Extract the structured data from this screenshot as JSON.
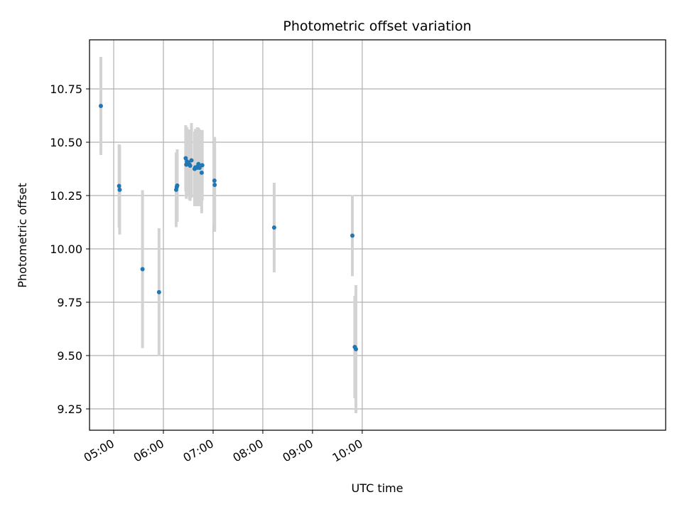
{
  "chart_data": {
    "type": "scatter",
    "title": "Photometric offset variation",
    "xlabel": "UTC time",
    "ylabel": "Photometric offset",
    "x_unit": "minutes after 00:00 UTC",
    "xlim": [
      270.8,
      966.3
    ],
    "ylim": [
      9.15,
      10.98
    ],
    "xticks": [
      {
        "value": 300,
        "label": "05:00"
      },
      {
        "value": 360,
        "label": "06:00"
      },
      {
        "value": 420,
        "label": "07:00"
      },
      {
        "value": 480,
        "label": "08:00"
      },
      {
        "value": 540,
        "label": "09:00"
      },
      {
        "value": 600,
        "label": "10:00"
      }
    ],
    "yticks": [
      {
        "value": 9.25,
        "label": "9.25"
      },
      {
        "value": 9.5,
        "label": "9.50"
      },
      {
        "value": 9.75,
        "label": "9.75"
      },
      {
        "value": 10.0,
        "label": "10.00"
      },
      {
        "value": 10.25,
        "label": "10.25"
      },
      {
        "value": 10.5,
        "label": "10.50"
      },
      {
        "value": 10.75,
        "label": "10.75"
      }
    ],
    "grid": true,
    "point_color": "#1f77b4",
    "errorbar_color": "#d3d3d3",
    "points": [
      {
        "x": 284.5,
        "y": 10.67,
        "err": 0.23
      },
      {
        "x": 306.5,
        "y": 10.295,
        "err": 0.195
      },
      {
        "x": 307.2,
        "y": 10.277,
        "err": 0.21
      },
      {
        "x": 334.8,
        "y": 9.905,
        "err": 0.37
      },
      {
        "x": 354.7,
        "y": 9.797,
        "err": 0.3
      },
      {
        "x": 375.4,
        "y": 10.277,
        "err": 0.175
      },
      {
        "x": 376.1,
        "y": 10.29,
        "err": 0.16
      },
      {
        "x": 376.7,
        "y": 10.297,
        "err": 0.17
      },
      {
        "x": 386.9,
        "y": 10.425,
        "err": 0.155
      },
      {
        "x": 387.6,
        "y": 10.395,
        "err": 0.16
      },
      {
        "x": 388.4,
        "y": 10.41,
        "err": 0.16
      },
      {
        "x": 390.2,
        "y": 10.405,
        "err": 0.155
      },
      {
        "x": 391.5,
        "y": 10.395,
        "err": 0.165
      },
      {
        "x": 392.3,
        "y": 10.39,
        "err": 0.165
      },
      {
        "x": 393.9,
        "y": 10.415,
        "err": 0.175
      },
      {
        "x": 397.7,
        "y": 10.375,
        "err": 0.175
      },
      {
        "x": 398.5,
        "y": 10.382,
        "err": 0.18
      },
      {
        "x": 400.3,
        "y": 10.38,
        "err": 0.18
      },
      {
        "x": 401.0,
        "y": 10.385,
        "err": 0.185
      },
      {
        "x": 402.3,
        "y": 10.398,
        "err": 0.17
      },
      {
        "x": 403.6,
        "y": 10.38,
        "err": 0.18
      },
      {
        "x": 406.2,
        "y": 10.357,
        "err": 0.19
      },
      {
        "x": 406.9,
        "y": 10.392,
        "err": 0.165
      },
      {
        "x": 421.6,
        "y": 10.32,
        "err": 0.205
      },
      {
        "x": 421.9,
        "y": 10.3,
        "err": 0.22
      },
      {
        "x": 493.7,
        "y": 10.1,
        "err": 0.21
      },
      {
        "x": 588.1,
        "y": 10.062,
        "err": 0.19
      },
      {
        "x": 591.0,
        "y": 9.54,
        "err": 0.24
      },
      {
        "x": 592.4,
        "y": 9.53,
        "err": 0.3
      }
    ]
  }
}
